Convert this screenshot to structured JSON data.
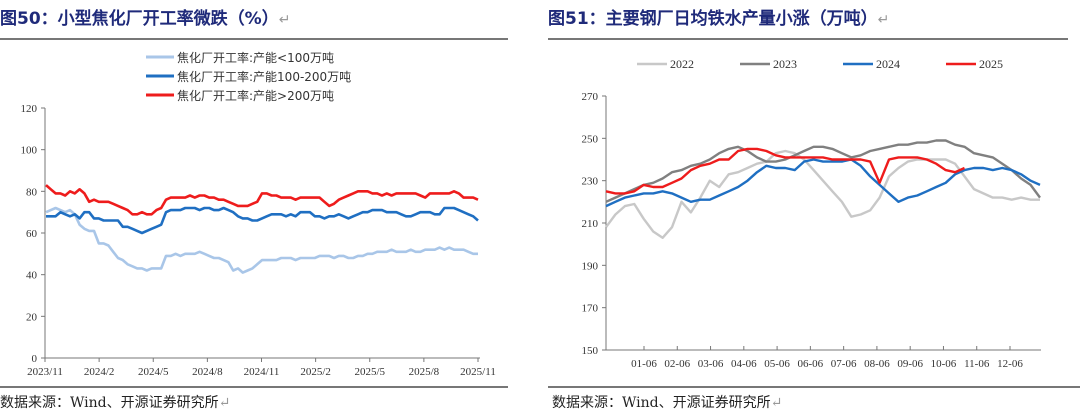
{
  "left": {
    "title": "图50：小型焦化厂开工率微跌（%）",
    "source": "数据来源：Wind、开源证券研究所",
    "chart_data": {
      "type": "line",
      "title": "小型焦化厂开工率微跌（%）",
      "ylim": [
        0,
        120
      ],
      "yticks": [
        "0",
        "20",
        "40",
        "60",
        "80",
        "100",
        "120"
      ],
      "xticks": [
        "2023/11",
        "2024/2",
        "2024/5",
        "2024/8",
        "2024/11",
        "2025/2",
        "2025/5",
        "2025/8",
        "2025/11"
      ],
      "legend_position": "top",
      "series": [
        {
          "name": "焦化厂开工率:产能<100万吨",
          "color": "#a9c6e8",
          "values": [
            70,
            71,
            72,
            71,
            70,
            71,
            69,
            64,
            62,
            61,
            61,
            55,
            55,
            54,
            51,
            48,
            47,
            45,
            44,
            43,
            43,
            42,
            43,
            43,
            43,
            49,
            49,
            50,
            49,
            50,
            50,
            50,
            51,
            50,
            49,
            48,
            48,
            47,
            46,
            42,
            43,
            41,
            42,
            43,
            45,
            47,
            47,
            47,
            47,
            48,
            48,
            48,
            47,
            48,
            48,
            48,
            48,
            49,
            49,
            49,
            48,
            49,
            49,
            48,
            48,
            49,
            49,
            50,
            50,
            51,
            51,
            51,
            52,
            51,
            51,
            51,
            52,
            51,
            51,
            52,
            52,
            52,
            53,
            52,
            53,
            52,
            52,
            52,
            51,
            50,
            50
          ]
        },
        {
          "name": "焦化厂开工率:产能100-200万吨",
          "color": "#1f6fc2",
          "values": [
            68,
            68,
            68,
            70,
            69,
            68,
            69,
            67,
            70,
            70,
            67,
            67,
            66,
            66,
            66,
            66,
            63,
            63,
            62,
            61,
            60,
            61,
            62,
            63,
            64,
            70,
            71,
            71,
            71,
            72,
            72,
            72,
            71,
            72,
            72,
            71,
            71,
            72,
            71,
            70,
            68,
            67,
            67,
            66,
            66,
            67,
            68,
            69,
            69,
            69,
            68,
            69,
            68,
            70,
            70,
            70,
            68,
            68,
            67,
            68,
            68,
            69,
            68,
            67,
            68,
            69,
            70,
            70,
            71,
            71,
            71,
            70,
            70,
            70,
            69,
            68,
            68,
            69,
            70,
            70,
            70,
            69,
            69,
            72,
            72,
            72,
            71,
            70,
            69,
            68,
            66
          ]
        },
        {
          "name": "焦化厂开工率:产能>200万吨",
          "color": "#ee1c1c",
          "values": [
            83,
            81,
            79,
            79,
            78,
            80,
            79,
            81,
            79,
            75,
            76,
            75,
            75,
            75,
            74,
            73,
            72,
            71,
            69,
            69,
            70,
            69,
            69,
            71,
            72,
            76,
            77,
            77,
            77,
            77,
            78,
            77,
            78,
            78,
            77,
            77,
            76,
            76,
            75,
            74,
            73,
            73,
            73,
            74,
            75,
            79,
            79,
            78,
            78,
            77,
            77,
            77,
            76,
            77,
            77,
            77,
            77,
            77,
            75,
            73,
            74,
            76,
            77,
            78,
            79,
            80,
            80,
            80,
            79,
            79,
            78,
            79,
            78,
            79,
            79,
            79,
            79,
            79,
            78,
            77,
            79,
            79,
            79,
            79,
            79,
            80,
            79,
            77,
            77,
            77,
            76
          ]
        }
      ]
    }
  },
  "right": {
    "title": "图51：主要钢厂日均铁水产量小涨（万吨）",
    "source": "数据来源：Wind、开源证券研究所",
    "chart_data": {
      "type": "line",
      "title": "主要钢厂日均铁水产量小涨（万吨）",
      "ylim": [
        150,
        270
      ],
      "yticks": [
        "150",
        "170",
        "190",
        "210",
        "230",
        "250",
        "270"
      ],
      "xticks": [
        "01-06",
        "02-06",
        "03-06",
        "04-06",
        "05-06",
        "06-06",
        "07-06",
        "08-06",
        "09-06",
        "10-06",
        "11-06",
        "12-06"
      ],
      "legend_position": "top",
      "series": [
        {
          "name": "2022",
          "color": "#c8c8c8",
          "values": [
            208,
            214,
            218,
            219,
            212,
            206,
            203,
            208,
            220,
            215,
            222,
            230,
            227,
            233,
            234,
            236,
            238,
            239,
            243,
            244,
            243,
            240,
            235,
            230,
            225,
            220,
            213,
            214,
            216,
            222,
            232,
            236,
            239,
            240,
            240,
            240,
            240,
            238,
            232,
            226,
            224,
            222,
            222,
            221,
            222,
            221,
            221
          ]
        },
        {
          "name": "2023",
          "color": "#808080",
          "values": [
            220,
            222,
            224,
            226,
            228,
            229,
            231,
            234,
            235,
            237,
            238,
            240,
            243,
            245,
            246,
            244,
            241,
            239,
            239,
            240,
            242,
            244,
            246,
            246,
            245,
            243,
            241,
            242,
            244,
            245,
            246,
            247,
            247,
            248,
            248,
            249,
            249,
            247,
            246,
            243,
            242,
            241,
            238,
            235,
            231,
            228,
            222
          ]
        },
        {
          "name": "2024",
          "color": "#1f6fc2",
          "values": [
            218,
            220,
            222,
            223,
            224,
            224,
            225,
            224,
            222,
            220,
            221,
            221,
            223,
            225,
            227,
            230,
            234,
            237,
            236,
            236,
            235,
            239,
            240,
            239,
            239,
            239,
            240,
            237,
            232,
            228,
            224,
            220,
            222,
            223,
            225,
            227,
            229,
            233,
            235,
            236,
            236,
            235,
            236,
            235,
            233,
            230,
            228
          ]
        },
        {
          "name": "2025",
          "color": "#ee1c1c",
          "values": [
            225,
            224,
            224,
            225,
            228,
            227,
            227,
            229,
            231,
            235,
            237,
            238,
            240,
            240,
            244,
            245,
            245,
            244,
            242,
            241,
            241,
            241,
            241,
            241,
            240,
            240,
            240,
            240,
            239,
            229,
            240,
            241,
            241,
            241,
            240,
            238,
            235,
            234,
            236
          ]
        }
      ]
    }
  }
}
